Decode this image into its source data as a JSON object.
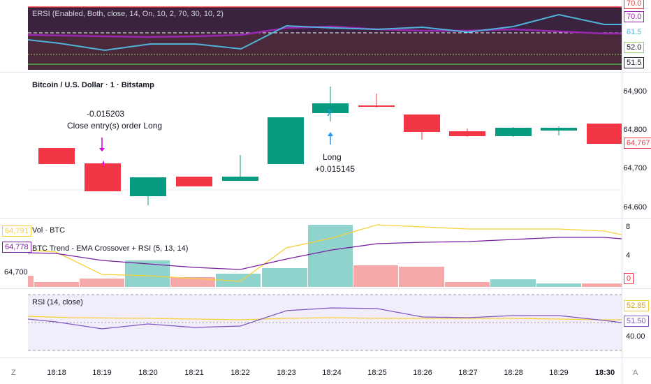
{
  "ersi": {
    "title": "ERSI (Enabled, Both, close, 14, On, 10, 2, 70, 30, 10, 2)",
    "levels": [
      "70.0",
      "70.0",
      "61.5",
      "52.0",
      "51.5"
    ]
  },
  "price": {
    "title": "Bitcoin / U.S. Dollar · 1 · Bitstamp",
    "axis": [
      "64,900",
      "64,800",
      "64,700",
      "64,600"
    ],
    "current": "64,767",
    "close_note_value": "-0.015203",
    "close_note_text": "Close entry(s) order Long",
    "long_label": "Long",
    "long_value": "+0.015145"
  },
  "volume": {
    "title": "Vol · BTC",
    "indicator": "BTC Trend - EMA Crossover + RSI (5, 13, 14)",
    "left_badge_1": "64,791",
    "left_badge_2": "64,778",
    "left_value": "64,700",
    "axis": [
      "8",
      "4"
    ],
    "zero_badge": "0"
  },
  "rsi": {
    "title": "RSI (14, close)",
    "badge_1": "52.85",
    "badge_2": "51.50",
    "axis_40": "40.00"
  },
  "time_axis": {
    "left_btn": "Z",
    "right_btn": "A",
    "ticks": [
      "18:18",
      "18:19",
      "18:20",
      "18:21",
      "18:22",
      "18:23",
      "18:24",
      "18:25",
      "18:26",
      "18:27",
      "18:28",
      "18:29",
      "18:30"
    ]
  },
  "colors": {
    "up": "#089981",
    "down": "#f23645",
    "ema_fast": "#f7d038",
    "ema_slow": "#7b1fa2",
    "rsi_line": "#4fb3d9"
  }
}
